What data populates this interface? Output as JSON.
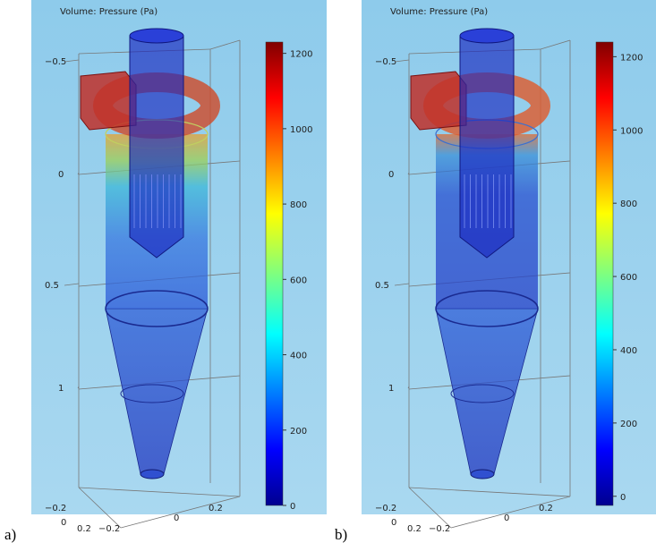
{
  "panels": [
    {
      "label": "a)",
      "title": "Volume: Pressure (Pa)",
      "colorbar": {
        "clim": [
          0,
          1230
        ],
        "ticks": [
          0,
          200,
          400,
          600,
          800,
          1000,
          1200
        ]
      },
      "z_ticks": [
        "−0.5",
        "0",
        "0.5",
        "1"
      ],
      "bottom_ticks": [
        "−0.2",
        "0",
        "0.2",
        "−0.2",
        "0",
        "0.2"
      ]
    },
    {
      "label": "b)",
      "title": "Volume: Pressure (Pa)",
      "colorbar": {
        "clim": [
          -25,
          1240
        ],
        "ticks": [
          0,
          200,
          400,
          600,
          800,
          1000,
          1200
        ]
      },
      "z_ticks": [
        "−0.5",
        "0",
        "0.5",
        "1"
      ],
      "bottom_ticks": [
        "−0.2",
        "0",
        "0.2",
        "−0.2",
        "0",
        "0.2"
      ]
    }
  ]
}
